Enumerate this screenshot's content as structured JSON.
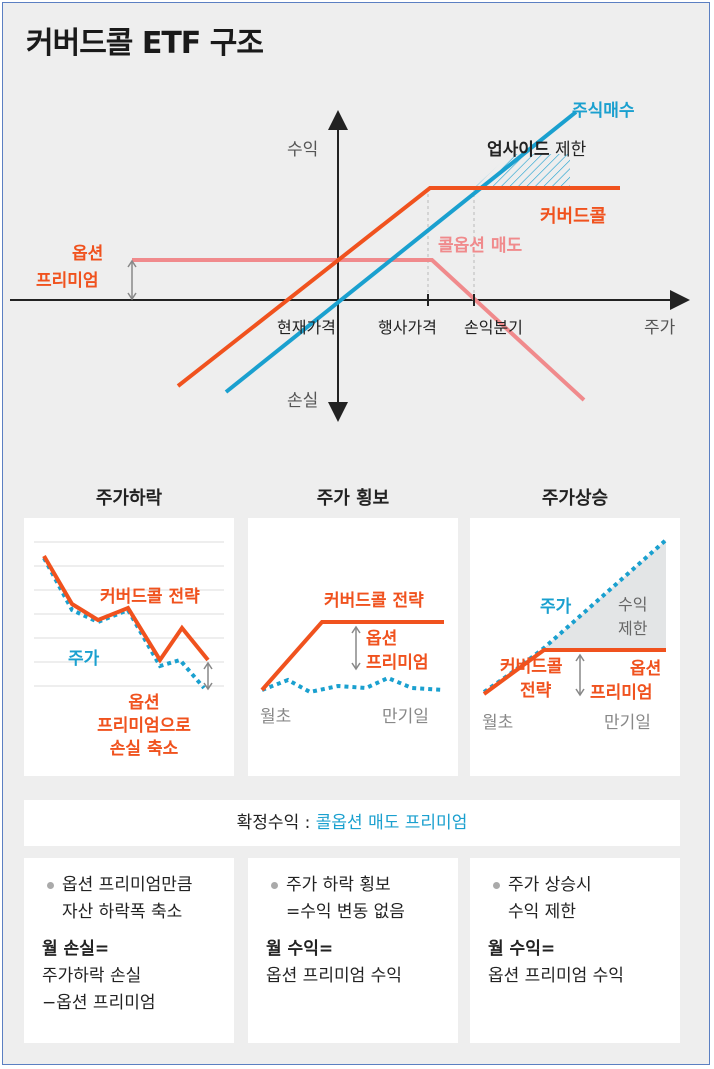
{
  "title": "커버드콜 ETF 구조",
  "main_chart": {
    "y_top": "수익",
    "y_bottom": "손실",
    "x_right": "주가",
    "stock_label": "주식매수",
    "upside_bold": "업사이드",
    "upside_rest": " 제한",
    "covered_call_label": "커버드콜",
    "call_sell_label": "콜옵션 매도",
    "premium_label_1": "옵션",
    "premium_label_2": "프리미엄",
    "tick_current": "현재가격",
    "tick_strike": "행사가격",
    "tick_breakeven": "손익분기"
  },
  "panels": [
    {
      "title": "주가하락",
      "strategy": "커버드콜 전략",
      "stock": "주가",
      "note_1": "옵션",
      "note_2": "프리미엄으로",
      "note_3": "손실 축소"
    },
    {
      "title": "주가 횡보",
      "strategy": "커버드콜 전략",
      "premium_1": "옵션",
      "premium_2": "프리미엄",
      "start": "월초",
      "end": "만기일"
    },
    {
      "title": "주가상승",
      "stock": "주가",
      "cap_1": "수익",
      "cap_2": "제한",
      "strategy_1": "커버드콜",
      "strategy_2": "전략",
      "premium_1": "옵션",
      "premium_2": "프리미엄",
      "start": "월초",
      "end": "만기일"
    }
  ],
  "confirm": {
    "label": "확정수익 : ",
    "value": "콜옵션 매도 프리미엄"
  },
  "texts": [
    {
      "l1": "옵션 프리미엄만큼",
      "l2": "자산 하락폭 축소",
      "s1": "월 손실=",
      "s2": "주가하락 손실",
      "s3": "−옵션 프리미엄"
    },
    {
      "l1": "주가 하락 횡보",
      "l2": "=수익 변동 없음",
      "s1": "월 수익=",
      "s2": "옵션 프리미엄 수익",
      "s3": ""
    },
    {
      "l1": "주가 상승시",
      "l2": "수익 제한",
      "s1": "월 수익=",
      "s2": "옵션 프리미엄 수익",
      "s3": ""
    }
  ],
  "colors": {
    "orange": "#f0521e",
    "blue": "#1aa0cf",
    "pink": "#f08a8c",
    "gray": "#888888"
  }
}
